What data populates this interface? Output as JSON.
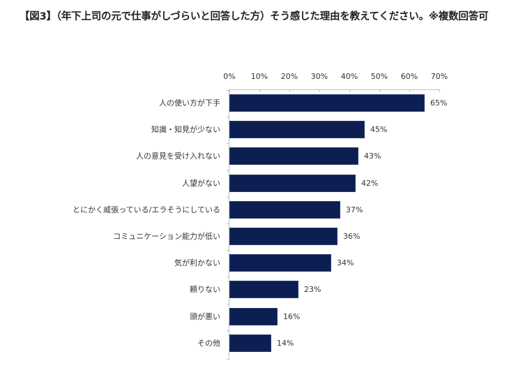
{
  "title": "【図3】（年下上司の元で仕事がしづらいと回答した方）そう感じた理由を教えてください。※複数回答可",
  "colors": {
    "bar": "#0d1f52",
    "axis": "#bfbfbf",
    "text": "#333333"
  },
  "axis": {
    "ticks": [
      "0%",
      "10%",
      "20%",
      "30%",
      "40%",
      "50%",
      "60%",
      "70%"
    ]
  },
  "bars": [
    {
      "label": "人の使い方が下手",
      "value": 65,
      "value_label": "65%"
    },
    {
      "label": "知識・知見が少ない",
      "value": 45,
      "value_label": "45%"
    },
    {
      "label": "人の意見を受け入れない",
      "value": 43,
      "value_label": "43%"
    },
    {
      "label": "人望がない",
      "value": 42,
      "value_label": "42%"
    },
    {
      "label": "とにかく威張っている/エラそうにしている",
      "value": 37,
      "value_label": "37%"
    },
    {
      "label": "コミュニケーション能力が低い",
      "value": 36,
      "value_label": "36%"
    },
    {
      "label": "気が利かない",
      "value": 34,
      "value_label": "34%"
    },
    {
      "label": "頼りない",
      "value": 23,
      "value_label": "23%"
    },
    {
      "label": "頭が悪い",
      "value": 16,
      "value_label": "16%"
    },
    {
      "label": "その他",
      "value": 14,
      "value_label": "14%"
    }
  ],
  "chart_data": {
    "type": "bar",
    "orientation": "horizontal",
    "title": "【図3】（年下上司の元で仕事がしづらいと回答した方）そう感じた理由を教えてください。※複数回答可",
    "categories": [
      "人の使い方が下手",
      "知識・知見が少ない",
      "人の意見を受け入れない",
      "人望がない",
      "とにかく威張っている/エラそうにしている",
      "コミュニケーション能力が低い",
      "気が利かない",
      "頼りない",
      "頭が悪い",
      "その他"
    ],
    "values": [
      65,
      45,
      43,
      42,
      37,
      36,
      34,
      23,
      16,
      14
    ],
    "value_labels": [
      "65%",
      "45%",
      "43%",
      "42%",
      "37%",
      "36%",
      "34%",
      "23%",
      "16%",
      "14%"
    ],
    "xlabel": "",
    "ylabel": "",
    "xlim": [
      0,
      70
    ],
    "x_ticks": [
      "0%",
      "10%",
      "20%",
      "30%",
      "40%",
      "50%",
      "60%",
      "70%"
    ],
    "axis_position": "top",
    "grid": false,
    "legend": null,
    "bar_color": "#0d1f52"
  }
}
